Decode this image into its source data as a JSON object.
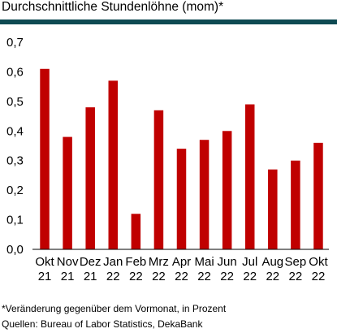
{
  "chart_data": {
    "type": "bar",
    "title": "Durchschnittliche Stundenlöhne (mom)*",
    "categories": [
      [
        "Okt",
        "21"
      ],
      [
        "Nov",
        "21"
      ],
      [
        "Dez",
        "21"
      ],
      [
        "Jan",
        "22"
      ],
      [
        "Feb",
        "22"
      ],
      [
        "Mrz",
        "22"
      ],
      [
        "Apr",
        "22"
      ],
      [
        "Mai",
        "22"
      ],
      [
        "Jun",
        "22"
      ],
      [
        "Jul",
        "22"
      ],
      [
        "Aug",
        "22"
      ],
      [
        "Sep",
        "22"
      ],
      [
        "Okt",
        "22"
      ]
    ],
    "values": [
      0.61,
      0.38,
      0.48,
      0.57,
      0.12,
      0.47,
      0.34,
      0.37,
      0.4,
      0.49,
      0.27,
      0.3,
      0.36
    ],
    "ylim": [
      0,
      0.7
    ],
    "yticks": [
      "0,0",
      "0,1",
      "0,2",
      "0,3",
      "0,4",
      "0,5",
      "0,6",
      "0,7"
    ],
    "bar_color": "#c00000",
    "grid": false,
    "xlabel": "",
    "ylabel": ""
  },
  "footnotes": {
    "note": "*Veränderung gegenüber dem Vormonat, in Prozent",
    "source": "Quellen: Bureau of Labor Statistics, DekaBank"
  }
}
